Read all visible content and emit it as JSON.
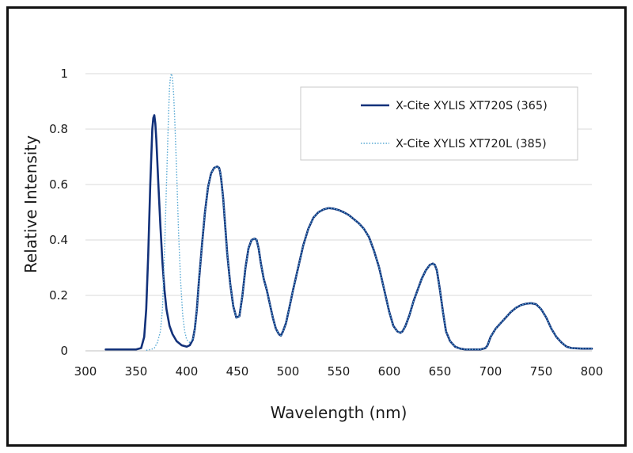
{
  "chart_data": {
    "type": "line",
    "title": "",
    "xlabel": "Wavelength (nm)",
    "ylabel": "Relative Intensity",
    "xlim": [
      300,
      800
    ],
    "ylim": [
      0,
      1
    ],
    "x_ticks": [
      300,
      350,
      400,
      450,
      500,
      550,
      600,
      650,
      700,
      750,
      800
    ],
    "y_ticks": [
      0,
      0.2,
      0.4,
      0.6,
      0.8,
      1
    ],
    "y_tick_labels": [
      "0",
      "0.2",
      "0.4",
      "0.6",
      "0.8",
      "1"
    ],
    "grid": "horizontal",
    "legend_position": "top-right",
    "series": [
      {
        "name": "X-Cite XYLIS XT720S (365)",
        "color": "#12317a",
        "style": "solid",
        "x": [
          320,
          350,
          355,
          358,
          360,
          362,
          364,
          366,
          367,
          368,
          369,
          370,
          372,
          374,
          376,
          378,
          380,
          383,
          386,
          390,
          395,
          400,
          403,
          406,
          408,
          410,
          412,
          415,
          418,
          421,
          424,
          427,
          430,
          432,
          433,
          434,
          436,
          438,
          440,
          443,
          446,
          449,
          452,
          455,
          458,
          461,
          464,
          467,
          469,
          471,
          473,
          476,
          479,
          482,
          485,
          488,
          491,
          493,
          495,
          498,
          501,
          505,
          510,
          515,
          520,
          525,
          530,
          535,
          540,
          545,
          550,
          555,
          560,
          565,
          570,
          575,
          580,
          585,
          590,
          595,
          600,
          604,
          608,
          611,
          613,
          616,
          620,
          624,
          628,
          632,
          636,
          640,
          643,
          645,
          647,
          650,
          653,
          656,
          660,
          665,
          670,
          675,
          680,
          685,
          690,
          695,
          697,
          700,
          705,
          710,
          715,
          720,
          725,
          730,
          735,
          740,
          745,
          750,
          755,
          760,
          765,
          770,
          775,
          780,
          790,
          800
        ],
        "values": [
          0.005,
          0.005,
          0.01,
          0.05,
          0.15,
          0.35,
          0.6,
          0.8,
          0.84,
          0.85,
          0.82,
          0.76,
          0.6,
          0.45,
          0.32,
          0.22,
          0.15,
          0.09,
          0.06,
          0.035,
          0.02,
          0.015,
          0.02,
          0.04,
          0.08,
          0.15,
          0.25,
          0.38,
          0.5,
          0.59,
          0.64,
          0.66,
          0.665,
          0.66,
          0.645,
          0.62,
          0.55,
          0.45,
          0.35,
          0.24,
          0.16,
          0.12,
          0.125,
          0.2,
          0.3,
          0.37,
          0.4,
          0.405,
          0.4,
          0.37,
          0.32,
          0.26,
          0.22,
          0.17,
          0.12,
          0.08,
          0.06,
          0.055,
          0.07,
          0.1,
          0.15,
          0.22,
          0.3,
          0.38,
          0.44,
          0.48,
          0.5,
          0.51,
          0.515,
          0.513,
          0.508,
          0.5,
          0.49,
          0.475,
          0.46,
          0.44,
          0.41,
          0.36,
          0.3,
          0.22,
          0.14,
          0.09,
          0.07,
          0.065,
          0.07,
          0.09,
          0.13,
          0.18,
          0.22,
          0.26,
          0.29,
          0.31,
          0.315,
          0.31,
          0.29,
          0.22,
          0.14,
          0.07,
          0.035,
          0.015,
          0.008,
          0.005,
          0.005,
          0.005,
          0.005,
          0.01,
          0.02,
          0.05,
          0.08,
          0.1,
          0.12,
          0.14,
          0.155,
          0.165,
          0.17,
          0.172,
          0.168,
          0.15,
          0.12,
          0.08,
          0.05,
          0.03,
          0.015,
          0.01,
          0.008,
          0.008
        ]
      },
      {
        "name": "X-Cite XYLIS XT720L (385)",
        "color": "#5aaad4",
        "style": "dotted",
        "x": [
          360,
          365,
          368,
          371,
          374,
          376,
          378,
          380,
          382,
          383,
          384,
          385,
          386,
          387,
          388,
          390,
          392,
          394,
          396,
          398,
          400,
          403,
          406,
          408,
          410,
          412,
          415,
          418,
          421,
          424,
          427,
          430,
          432,
          433,
          434,
          436,
          438,
          440,
          443,
          446,
          449,
          452,
          455,
          458,
          461,
          464,
          467,
          469,
          471,
          473,
          476,
          479,
          482,
          485,
          488,
          491,
          493,
          495,
          498,
          501,
          505,
          510,
          515,
          520,
          525,
          530,
          535,
          540,
          545,
          550,
          555,
          560,
          565,
          570,
          575,
          580,
          585,
          590,
          595,
          600,
          604,
          608,
          611,
          613,
          616,
          620,
          624,
          628,
          632,
          636,
          640,
          643,
          645,
          647,
          650,
          653,
          656,
          660,
          665,
          670,
          675,
          680,
          685,
          690,
          695,
          697,
          700,
          705,
          710,
          715,
          720,
          725,
          730,
          735,
          740,
          745,
          750,
          755,
          760,
          765,
          770,
          775,
          780,
          790,
          800
        ],
        "values": [
          0.002,
          0.005,
          0.01,
          0.03,
          0.07,
          0.15,
          0.35,
          0.6,
          0.85,
          0.95,
          0.99,
          1.0,
          0.98,
          0.93,
          0.85,
          0.65,
          0.42,
          0.25,
          0.13,
          0.07,
          0.04,
          0.03,
          0.04,
          0.08,
          0.15,
          0.25,
          0.38,
          0.5,
          0.59,
          0.64,
          0.66,
          0.665,
          0.66,
          0.645,
          0.62,
          0.55,
          0.45,
          0.35,
          0.24,
          0.16,
          0.12,
          0.125,
          0.2,
          0.3,
          0.37,
          0.4,
          0.405,
          0.4,
          0.37,
          0.32,
          0.26,
          0.22,
          0.17,
          0.12,
          0.08,
          0.06,
          0.055,
          0.07,
          0.1,
          0.15,
          0.22,
          0.3,
          0.38,
          0.44,
          0.48,
          0.5,
          0.51,
          0.515,
          0.513,
          0.508,
          0.5,
          0.49,
          0.475,
          0.46,
          0.44,
          0.41,
          0.36,
          0.3,
          0.22,
          0.14,
          0.09,
          0.07,
          0.065,
          0.07,
          0.09,
          0.13,
          0.18,
          0.22,
          0.26,
          0.29,
          0.31,
          0.315,
          0.31,
          0.29,
          0.22,
          0.14,
          0.07,
          0.035,
          0.015,
          0.008,
          0.005,
          0.005,
          0.005,
          0.005,
          0.01,
          0.02,
          0.05,
          0.08,
          0.1,
          0.12,
          0.14,
          0.155,
          0.165,
          0.17,
          0.172,
          0.168,
          0.15,
          0.12,
          0.08,
          0.05,
          0.03,
          0.015,
          0.01,
          0.008,
          0.008
        ]
      }
    ]
  }
}
